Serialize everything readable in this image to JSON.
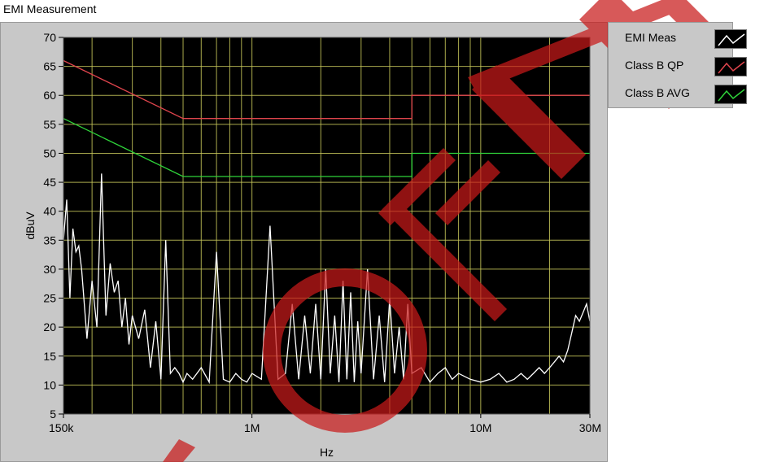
{
  "window": {
    "title": "EMI Measurement"
  },
  "legend": {
    "items": [
      {
        "label": "EMI Meas",
        "color": "#ffffff"
      },
      {
        "label": "Class B QP",
        "color": "#e0454d"
      },
      {
        "label": "Class B AVG",
        "color": "#2fd43a"
      }
    ]
  },
  "watermark": {
    "text": "OFF",
    "color": "#c81a1a"
  },
  "chart_data": {
    "type": "line",
    "title": "EMI Measurement",
    "xlabel": "Hz",
    "ylabel": "dBuV",
    "xscale": "log",
    "xlim": [
      150000,
      30000000
    ],
    "ylim": [
      5,
      70
    ],
    "grid": true,
    "legend": "top-right, outside plot",
    "background": "#000000",
    "gridcolor": "#c8c85a",
    "y_ticks": [
      5,
      10,
      15,
      20,
      25,
      30,
      35,
      40,
      45,
      50,
      55,
      60,
      65,
      70
    ],
    "y_tick_labels": [
      "5",
      "10",
      "15",
      "20",
      "25",
      "30",
      "35",
      "40",
      "45",
      "50",
      "55",
      "60",
      "65",
      "70"
    ],
    "x_ticks": [
      150000,
      1000000,
      10000000,
      30000000
    ],
    "x_tick_labels": [
      "150k",
      "1M",
      "10M",
      "30M"
    ],
    "series": [
      {
        "name": "Class B QP",
        "color": "#e0454d",
        "x": [
          150000,
          500000,
          500000,
          5000000,
          5000000,
          30000000
        ],
        "y": [
          66,
          56,
          56,
          56,
          60,
          60
        ]
      },
      {
        "name": "Class B AVG",
        "color": "#2fd43a",
        "x": [
          150000,
          500000,
          500000,
          5000000,
          5000000,
          30000000
        ],
        "y": [
          56,
          46,
          46,
          46,
          50,
          50
        ]
      },
      {
        "name": "EMI Meas",
        "color": "#ffffff",
        "x": [
          150000,
          155000,
          160000,
          165000,
          170000,
          175000,
          180000,
          190000,
          200000,
          210000,
          220000,
          230000,
          240000,
          250000,
          260000,
          270000,
          280000,
          290000,
          300000,
          320000,
          340000,
          360000,
          380000,
          400000,
          420000,
          440000,
          460000,
          480000,
          500000,
          520000,
          550000,
          600000,
          650000,
          700000,
          750000,
          800000,
          850000,
          900000,
          950000,
          1000000,
          1100000,
          1200000,
          1300000,
          1400000,
          1500000,
          1600000,
          1700000,
          1800000,
          1900000,
          2000000,
          2100000,
          2200000,
          2300000,
          2400000,
          2500000,
          2600000,
          2700000,
          2800000,
          2900000,
          3000000,
          3200000,
          3400000,
          3600000,
          3800000,
          4000000,
          4200000,
          4400000,
          4600000,
          4800000,
          5000000,
          5500000,
          6000000,
          6500000,
          7000000,
          7500000,
          8000000,
          9000000,
          10000000,
          11000000,
          12000000,
          13000000,
          14000000,
          15000000,
          16000000,
          17000000,
          18000000,
          19000000,
          20000000,
          21000000,
          22000000,
          23000000,
          24000000,
          25000000,
          26000000,
          27000000,
          28000000,
          29000000,
          30000000
        ],
        "y": [
          35,
          42,
          25,
          37,
          33,
          34,
          30,
          18,
          28,
          20,
          46.5,
          22,
          31,
          26,
          28,
          20,
          25,
          17,
          22,
          18,
          23,
          13,
          21,
          11,
          35,
          12,
          13,
          12,
          10.5,
          12,
          11,
          13,
          10.5,
          33,
          11,
          10.5,
          12,
          11,
          10.5,
          12,
          11,
          37.5,
          11,
          12,
          24,
          11,
          22,
          12,
          24,
          11,
          30,
          12,
          22,
          10.5,
          28,
          11,
          26,
          10.5,
          21,
          12,
          30,
          11,
          22,
          10.5,
          25,
          12,
          20,
          11,
          24,
          12,
          13,
          10.5,
          12,
          13,
          11,
          12,
          11,
          10.5,
          11,
          12,
          10.5,
          11,
          12,
          11,
          12,
          13,
          12,
          13,
          14,
          15,
          14,
          16,
          19,
          22,
          21,
          22.5,
          24,
          21
        ]
      }
    ]
  }
}
